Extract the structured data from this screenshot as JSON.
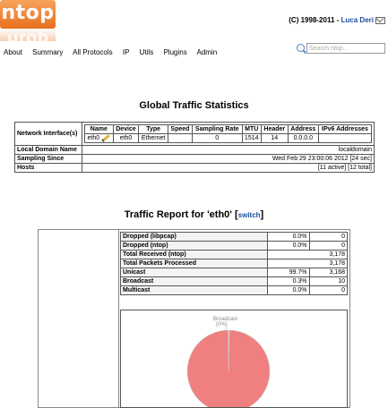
{
  "logo": {
    "text": "ntop"
  },
  "header": {
    "copyright_prefix": "(C) 1998-2011 - ",
    "author": "Luca Deri"
  },
  "menu": [
    "About",
    "Summary",
    "All Protocols",
    "IP",
    "Utils",
    "Plugins",
    "Admin"
  ],
  "search": {
    "placeholder": "Search ntop..."
  },
  "global": {
    "title": "Global Traffic Statistics",
    "network_interface_label": "Network Interface(s)",
    "iface_headers": [
      "Name",
      "Device",
      "Type",
      "Speed",
      "Sampling Rate",
      "MTU",
      "Header",
      "Address",
      "IPv6 Addresses"
    ],
    "iface_row": [
      "eth0",
      "eth0",
      "Ethernet",
      "",
      "0",
      "1514",
      "14",
      "0.0.0.0",
      ""
    ],
    "local_domain_label": "Local Domain Name",
    "local_domain_value": "localdomain",
    "sampling_since_label": "Sampling Since",
    "sampling_since_value": "Wed Feb 29 23:00:06 2012 [24 sec]",
    "hosts_label": "Hosts",
    "hosts_value": "[11 active] [12 total]"
  },
  "report": {
    "title": "Traffic Report for 'eth0' [",
    "switch_label": "switch",
    "title_suffix": "]",
    "rows": [
      {
        "label": "Dropped (libpcap)",
        "pct": "0.0%",
        "value": "0"
      },
      {
        "label": "Dropped (ntop)",
        "pct": "0.0%",
        "value": "0"
      },
      {
        "label": "Total Received (ntop)",
        "value": "3,178"
      },
      {
        "label": "Total Packets Processed",
        "value": "3,178"
      },
      {
        "label": "Unicast",
        "pct": "99.7%",
        "value": "3,168"
      },
      {
        "label": "Broadcast",
        "pct": "0.3%",
        "value": "10"
      },
      {
        "label": "Multicast",
        "pct": "0.0%",
        "value": "0"
      }
    ],
    "pie": {
      "broadcast_label": "Broadcast",
      "broadcast_pct": "(0%)",
      "colors": {
        "unicast": "#f08080",
        "broadcast": "#ffffff",
        "stroke": "#cccccc"
      }
    }
  }
}
